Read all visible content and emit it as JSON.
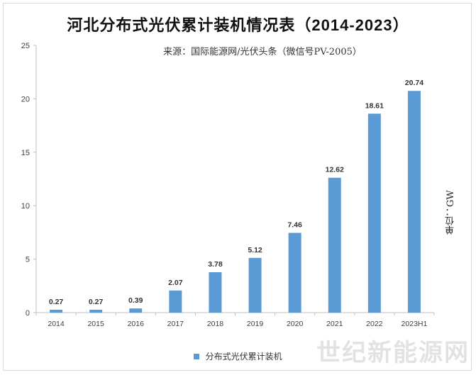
{
  "title": "河北分布式光伏累计装机情况表（2014-2023）",
  "subtitle": "来源：国际能源网/光伏头条（微信号PV-2005）",
  "unit_label": "单位：GW",
  "watermark_text": "世纪新能源网",
  "colors": {
    "bar": "#5b9bd5",
    "axis": "#bfbfbf",
    "text": "#404040"
  },
  "chart_data": {
    "type": "bar",
    "title": "河北分布式光伏累计装机情况表（2014-2023）",
    "categories": [
      "2014",
      "2015",
      "2016",
      "2017",
      "2018",
      "2019",
      "2020",
      "2021",
      "2022",
      "2023H1"
    ],
    "series": [
      {
        "name": "分布式光伏累计装机",
        "values": [
          0.27,
          0.27,
          0.39,
          2.07,
          3.78,
          5.12,
          7.46,
          12.62,
          18.61,
          20.74
        ]
      }
    ],
    "data_labels": [
      "0.27",
      "0.27",
      "0.39",
      "2.07",
      "3.78",
      "5.12",
      "7.46",
      "12.62",
      "18.61",
      "20.74"
    ],
    "ylim": [
      0,
      25
    ],
    "yticks": [
      0,
      5,
      10,
      15,
      20,
      25
    ],
    "grid": false,
    "legend": "bottom"
  }
}
